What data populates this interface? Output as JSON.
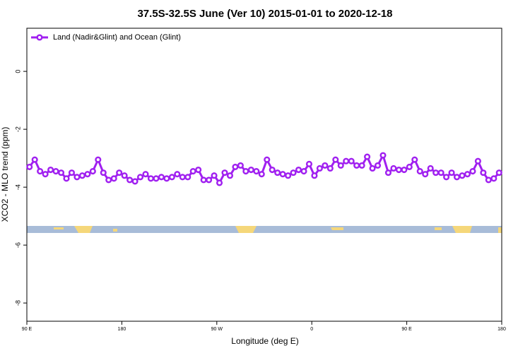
{
  "chart_data": {
    "type": "line",
    "title": "37.5S-32.5S June (Ver 10)   2015-01-01 to 2020-12-18",
    "xlabel": "Longitude (deg E)",
    "ylabel": "XCO2 - MLO trend (ppm)",
    "x": [
      92.5,
      97.5,
      102.5,
      107.5,
      112.5,
      117.5,
      122.5,
      127.5,
      132.5,
      137.5,
      142.5,
      147.5,
      152.5,
      157.5,
      162.5,
      167.5,
      172.5,
      177.5,
      182.5,
      187.5,
      192.5,
      197.5,
      202.5,
      207.5,
      212.5,
      217.5,
      222.5,
      227.5,
      232.5,
      237.5,
      242.5,
      247.5,
      252.5,
      257.5,
      262.5,
      267.5,
      272.5,
      277.5,
      282.5,
      287.5,
      292.5,
      297.5,
      302.5,
      307.5,
      312.5,
      317.5,
      322.5,
      327.5,
      332.5,
      337.5,
      342.5,
      347.5,
      352.5,
      357.5,
      362.5,
      367.5,
      372.5,
      377.5,
      382.5,
      387.5,
      392.5,
      397.5,
      402.5,
      407.5,
      412.5,
      417.5,
      422.5,
      427.5,
      432.5,
      437.5,
      442.5,
      447.5,
      452.5,
      457.5,
      462.5,
      467.5,
      472.5,
      477.5,
      482.5,
      487.5,
      492.5,
      497.5,
      502.5,
      507.5,
      512.5,
      517.5,
      522.5,
      527.5,
      532.5,
      537.5
    ],
    "series": [
      {
        "name": "Land (Nadir&Glint) and Ocean (Glint)",
        "color": "#a020f0",
        "values": [
          -3.3,
          -3.05,
          -3.45,
          -3.55,
          -3.4,
          -3.45,
          -3.5,
          -3.7,
          -3.5,
          -3.65,
          -3.6,
          -3.55,
          -3.45,
          -3.05,
          -3.5,
          -3.75,
          -3.7,
          -3.5,
          -3.6,
          -3.75,
          -3.8,
          -3.65,
          -3.55,
          -3.7,
          -3.7,
          -3.65,
          -3.7,
          -3.65,
          -3.55,
          -3.65,
          -3.65,
          -3.45,
          -3.4,
          -3.75,
          -3.75,
          -3.6,
          -3.85,
          -3.5,
          -3.6,
          -3.3,
          -3.25,
          -3.45,
          -3.4,
          -3.45,
          -3.55,
          -3.05,
          -3.4,
          -3.5,
          -3.55,
          -3.6,
          -3.5,
          -3.4,
          -3.45,
          -3.2,
          -3.6,
          -3.35,
          -3.25,
          -3.35,
          -3.05,
          -3.25,
          -3.1,
          -3.1,
          -3.25,
          -3.25,
          -2.95,
          -3.35,
          -3.25,
          -2.9,
          -3.5,
          -3.35,
          -3.4,
          -3.4,
          -3.3,
          -3.05,
          -3.45,
          -3.55,
          -3.35,
          -3.5,
          -3.5,
          -3.65,
          -3.5,
          -3.65,
          -3.6,
          -3.55,
          -3.45,
          -3.1,
          -3.5,
          -3.75,
          -3.7,
          -3.5
        ]
      }
    ],
    "xlim": [
      90,
      540
    ],
    "xticks": [
      {
        "value": 90,
        "label": "90 E"
      },
      180,
      {
        "value": 270,
        "label": "90 W"
      },
      {
        "value": 360,
        "label": "0"
      },
      {
        "value": 450,
        "label": "90 E"
      },
      {
        "value": 540,
        "label": "180"
      }
    ],
    "ylim": [
      -8.63,
      1.49
    ],
    "yticks": [
      0,
      -2,
      -4,
      -6,
      -8
    ],
    "legend": "top-left"
  }
}
